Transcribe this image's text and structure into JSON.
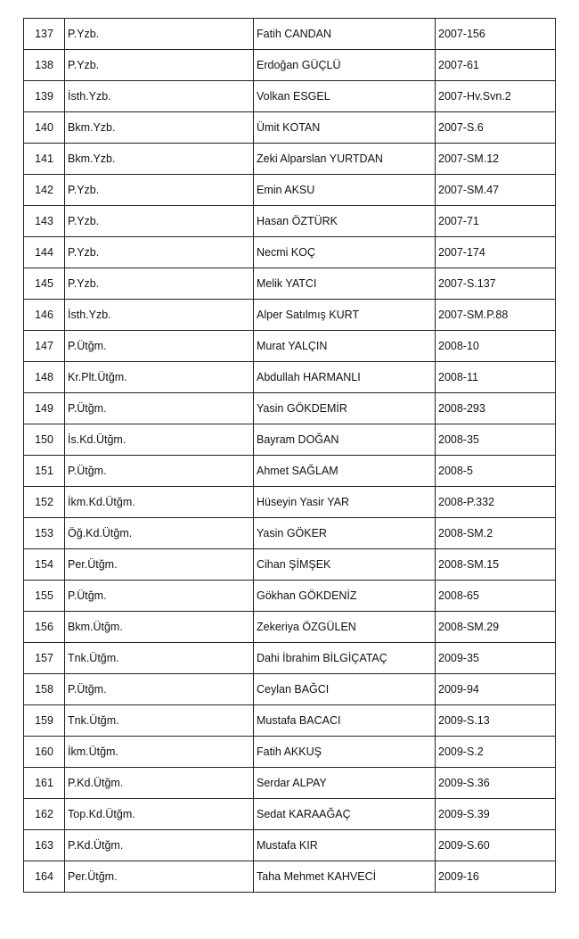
{
  "rows": [
    {
      "no": "137",
      "rank": "P.Yzb.",
      "name": "Fatih  CANDAN",
      "code": "2007-156"
    },
    {
      "no": "138",
      "rank": "P.Yzb.",
      "name": "Erdoğan GÜÇLÜ",
      "code": "2007-61"
    },
    {
      "no": "139",
      "rank": "İsth.Yzb.",
      "name": "Volkan ESGEL",
      "code": "2007-Hv.Svn.2"
    },
    {
      "no": "140",
      "rank": "Bkm.Yzb.",
      "name": "Ümit KOTAN",
      "code": "2007-S.6"
    },
    {
      "no": "141",
      "rank": "Bkm.Yzb.",
      "name": "Zeki Alparslan  YURTDAN",
      "code": "2007-SM.12"
    },
    {
      "no": "142",
      "rank": "P.Yzb.",
      "name": "Emin AKSU",
      "code": "2007-SM.47"
    },
    {
      "no": "143",
      "rank": "P.Yzb.",
      "name": "Hasan ÖZTÜRK",
      "code": "2007-71"
    },
    {
      "no": "144",
      "rank": "P.Yzb.",
      "name": "Necmi KOÇ",
      "code": "2007-174"
    },
    {
      "no": "145",
      "rank": "P.Yzb.",
      "name": "Melik YATCI",
      "code": "2007-S.137"
    },
    {
      "no": "146",
      "rank": "İsth.Yzb.",
      "name": "Alper Satılmış KURT",
      "code": "2007-SM.P.88"
    },
    {
      "no": "147",
      "rank": "P.Ütğm.",
      "name": "Murat YALÇIN",
      "code": "2008-10"
    },
    {
      "no": "148",
      "rank": "Kr.Plt.Ütğm.",
      "name": "Abdullah HARMANLI",
      "code": "2008-11"
    },
    {
      "no": "149",
      "rank": "P.Ütğm.",
      "name": "Yasin GÖKDEMİR",
      "code": "2008-293"
    },
    {
      "no": "150",
      "rank": "İs.Kd.Ütğm.",
      "name": "Bayram DOĞAN",
      "code": "2008-35"
    },
    {
      "no": "151",
      "rank": "P.Ütğm.",
      "name": "Ahmet SAĞLAM",
      "code": "2008-5"
    },
    {
      "no": "152",
      "rank": "İkm.Kd.Ütğm.",
      "name": "Hüseyin Yasir YAR",
      "code": "2008-P.332"
    },
    {
      "no": "153",
      "rank": "Öğ.Kd.Ütğm.",
      "name": "Yasin GÖKER",
      "code": "2008-SM.2"
    },
    {
      "no": "154",
      "rank": "Per.Ütğm.",
      "name": "Cihan ŞİMŞEK",
      "code": "2008-SM.15"
    },
    {
      "no": "155",
      "rank": "P.Ütğm.",
      "name": "Gökhan GÖKDENİZ",
      "code": "2008-65"
    },
    {
      "no": "156",
      "rank": "Bkm.Ütğm.",
      "name": "Zekeriya ÖZGÜLEN",
      "code": "2008-SM.29"
    },
    {
      "no": "157",
      "rank": "Tnk.Ütğm.",
      "name": "Dahi İbrahim BİLGİÇATAÇ",
      "code": "2009-35"
    },
    {
      "no": "158",
      "rank": "P.Ütğm.",
      "name": "Ceylan BAĞCI",
      "code": "2009-94"
    },
    {
      "no": "159",
      "rank": "Tnk.Ütğm.",
      "name": "Mustafa BACACI",
      "code": "2009-S.13"
    },
    {
      "no": "160",
      "rank": "İkm.Ütğm.",
      "name": "Fatih AKKUŞ",
      "code": "2009-S.2"
    },
    {
      "no": "161",
      "rank": "P.Kd.Ütğm.",
      "name": "Serdar ALPAY",
      "code": "2009-S.36"
    },
    {
      "no": "162",
      "rank": "Top.Kd.Ütğm.",
      "name": "Sedat KARAAĞAÇ",
      "code": "2009-S.39"
    },
    {
      "no": "163",
      "rank": "P.Kd.Ütğm.",
      "name": "Mustafa KIR",
      "code": "2009-S.60"
    },
    {
      "no": "164",
      "rank": "Per.Ütğm.",
      "name": "Taha Mehmet KAHVECİ",
      "code": "2009-16"
    }
  ]
}
